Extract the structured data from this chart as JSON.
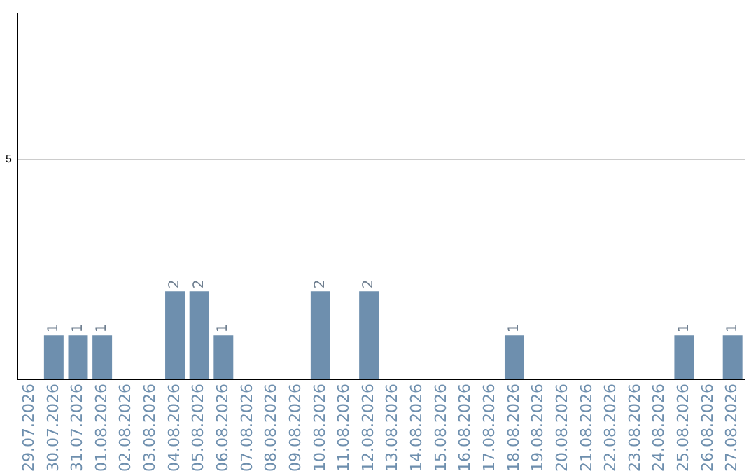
{
  "chart_data": {
    "type": "bar",
    "categories": [
      "29.07.2026",
      "30.07.2026",
      "31.07.2026",
      "01.08.2026",
      "02.08.2026",
      "03.08.2026",
      "04.08.2026",
      "05.08.2026",
      "06.08.2026",
      "07.08.2026",
      "08.08.2026",
      "09.08.2026",
      "10.08.2026",
      "11.08.2026",
      "12.08.2026",
      "13.08.2026",
      "14.08.2026",
      "15.08.2026",
      "16.08.2026",
      "17.08.2026",
      "18.08.2026",
      "19.08.2026",
      "20.08.2026",
      "21.08.2026",
      "22.08.2026",
      "23.08.2026",
      "24.08.2026",
      "25.08.2026",
      "26.08.2026",
      "27.08.2026"
    ],
    "values": [
      0,
      1,
      1,
      1,
      0,
      0,
      2,
      2,
      1,
      0,
      0,
      0,
      2,
      0,
      2,
      0,
      0,
      0,
      0,
      0,
      1,
      0,
      0,
      0,
      0,
      0,
      0,
      1,
      0,
      1
    ],
    "value_labels": [
      null,
      "1",
      "1",
      "1",
      null,
      null,
      "2",
      "2",
      "1",
      null,
      null,
      null,
      "2",
      null,
      "2",
      null,
      null,
      null,
      null,
      null,
      "1",
      null,
      null,
      null,
      null,
      null,
      null,
      "1",
      null,
      "1"
    ],
    "color": "#6e8fae",
    "ylim": [
      0,
      8.3
    ],
    "yticks": [
      5
    ],
    "grid": "y"
  }
}
